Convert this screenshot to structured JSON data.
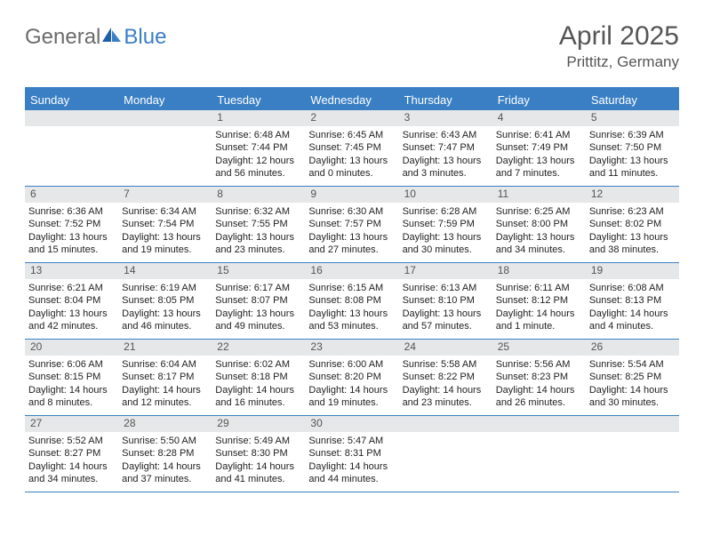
{
  "brand": {
    "part1": "General",
    "part2": "Blue"
  },
  "title": "April 2025",
  "location": "Prittitz, Germany",
  "colors": {
    "accent": "#3a7fc4",
    "daybar": "#e6e7e8",
    "text": "#222222",
    "muted": "#555555",
    "bg": "#ffffff"
  },
  "typography": {
    "title_fontsize": 30,
    "location_fontsize": 17,
    "dow_fontsize": 13,
    "cell_fontsize": 11
  },
  "dow": [
    "Sunday",
    "Monday",
    "Tuesday",
    "Wednesday",
    "Thursday",
    "Friday",
    "Saturday"
  ],
  "weeks": [
    [
      {
        "n": "",
        "sunrise": "",
        "sunset": "",
        "daylight1": "",
        "daylight2": ""
      },
      {
        "n": "",
        "sunrise": "",
        "sunset": "",
        "daylight1": "",
        "daylight2": ""
      },
      {
        "n": "1",
        "sunrise": "Sunrise: 6:48 AM",
        "sunset": "Sunset: 7:44 PM",
        "daylight1": "Daylight: 12 hours",
        "daylight2": "and 56 minutes."
      },
      {
        "n": "2",
        "sunrise": "Sunrise: 6:45 AM",
        "sunset": "Sunset: 7:45 PM",
        "daylight1": "Daylight: 13 hours",
        "daylight2": "and 0 minutes."
      },
      {
        "n": "3",
        "sunrise": "Sunrise: 6:43 AM",
        "sunset": "Sunset: 7:47 PM",
        "daylight1": "Daylight: 13 hours",
        "daylight2": "and 3 minutes."
      },
      {
        "n": "4",
        "sunrise": "Sunrise: 6:41 AM",
        "sunset": "Sunset: 7:49 PM",
        "daylight1": "Daylight: 13 hours",
        "daylight2": "and 7 minutes."
      },
      {
        "n": "5",
        "sunrise": "Sunrise: 6:39 AM",
        "sunset": "Sunset: 7:50 PM",
        "daylight1": "Daylight: 13 hours",
        "daylight2": "and 11 minutes."
      }
    ],
    [
      {
        "n": "6",
        "sunrise": "Sunrise: 6:36 AM",
        "sunset": "Sunset: 7:52 PM",
        "daylight1": "Daylight: 13 hours",
        "daylight2": "and 15 minutes."
      },
      {
        "n": "7",
        "sunrise": "Sunrise: 6:34 AM",
        "sunset": "Sunset: 7:54 PM",
        "daylight1": "Daylight: 13 hours",
        "daylight2": "and 19 minutes."
      },
      {
        "n": "8",
        "sunrise": "Sunrise: 6:32 AM",
        "sunset": "Sunset: 7:55 PM",
        "daylight1": "Daylight: 13 hours",
        "daylight2": "and 23 minutes."
      },
      {
        "n": "9",
        "sunrise": "Sunrise: 6:30 AM",
        "sunset": "Sunset: 7:57 PM",
        "daylight1": "Daylight: 13 hours",
        "daylight2": "and 27 minutes."
      },
      {
        "n": "10",
        "sunrise": "Sunrise: 6:28 AM",
        "sunset": "Sunset: 7:59 PM",
        "daylight1": "Daylight: 13 hours",
        "daylight2": "and 30 minutes."
      },
      {
        "n": "11",
        "sunrise": "Sunrise: 6:25 AM",
        "sunset": "Sunset: 8:00 PM",
        "daylight1": "Daylight: 13 hours",
        "daylight2": "and 34 minutes."
      },
      {
        "n": "12",
        "sunrise": "Sunrise: 6:23 AM",
        "sunset": "Sunset: 8:02 PM",
        "daylight1": "Daylight: 13 hours",
        "daylight2": "and 38 minutes."
      }
    ],
    [
      {
        "n": "13",
        "sunrise": "Sunrise: 6:21 AM",
        "sunset": "Sunset: 8:04 PM",
        "daylight1": "Daylight: 13 hours",
        "daylight2": "and 42 minutes."
      },
      {
        "n": "14",
        "sunrise": "Sunrise: 6:19 AM",
        "sunset": "Sunset: 8:05 PM",
        "daylight1": "Daylight: 13 hours",
        "daylight2": "and 46 minutes."
      },
      {
        "n": "15",
        "sunrise": "Sunrise: 6:17 AM",
        "sunset": "Sunset: 8:07 PM",
        "daylight1": "Daylight: 13 hours",
        "daylight2": "and 49 minutes."
      },
      {
        "n": "16",
        "sunrise": "Sunrise: 6:15 AM",
        "sunset": "Sunset: 8:08 PM",
        "daylight1": "Daylight: 13 hours",
        "daylight2": "and 53 minutes."
      },
      {
        "n": "17",
        "sunrise": "Sunrise: 6:13 AM",
        "sunset": "Sunset: 8:10 PM",
        "daylight1": "Daylight: 13 hours",
        "daylight2": "and 57 minutes."
      },
      {
        "n": "18",
        "sunrise": "Sunrise: 6:11 AM",
        "sunset": "Sunset: 8:12 PM",
        "daylight1": "Daylight: 14 hours",
        "daylight2": "and 1 minute."
      },
      {
        "n": "19",
        "sunrise": "Sunrise: 6:08 AM",
        "sunset": "Sunset: 8:13 PM",
        "daylight1": "Daylight: 14 hours",
        "daylight2": "and 4 minutes."
      }
    ],
    [
      {
        "n": "20",
        "sunrise": "Sunrise: 6:06 AM",
        "sunset": "Sunset: 8:15 PM",
        "daylight1": "Daylight: 14 hours",
        "daylight2": "and 8 minutes."
      },
      {
        "n": "21",
        "sunrise": "Sunrise: 6:04 AM",
        "sunset": "Sunset: 8:17 PM",
        "daylight1": "Daylight: 14 hours",
        "daylight2": "and 12 minutes."
      },
      {
        "n": "22",
        "sunrise": "Sunrise: 6:02 AM",
        "sunset": "Sunset: 8:18 PM",
        "daylight1": "Daylight: 14 hours",
        "daylight2": "and 16 minutes."
      },
      {
        "n": "23",
        "sunrise": "Sunrise: 6:00 AM",
        "sunset": "Sunset: 8:20 PM",
        "daylight1": "Daylight: 14 hours",
        "daylight2": "and 19 minutes."
      },
      {
        "n": "24",
        "sunrise": "Sunrise: 5:58 AM",
        "sunset": "Sunset: 8:22 PM",
        "daylight1": "Daylight: 14 hours",
        "daylight2": "and 23 minutes."
      },
      {
        "n": "25",
        "sunrise": "Sunrise: 5:56 AM",
        "sunset": "Sunset: 8:23 PM",
        "daylight1": "Daylight: 14 hours",
        "daylight2": "and 26 minutes."
      },
      {
        "n": "26",
        "sunrise": "Sunrise: 5:54 AM",
        "sunset": "Sunset: 8:25 PM",
        "daylight1": "Daylight: 14 hours",
        "daylight2": "and 30 minutes."
      }
    ],
    [
      {
        "n": "27",
        "sunrise": "Sunrise: 5:52 AM",
        "sunset": "Sunset: 8:27 PM",
        "daylight1": "Daylight: 14 hours",
        "daylight2": "and 34 minutes."
      },
      {
        "n": "28",
        "sunrise": "Sunrise: 5:50 AM",
        "sunset": "Sunset: 8:28 PM",
        "daylight1": "Daylight: 14 hours",
        "daylight2": "and 37 minutes."
      },
      {
        "n": "29",
        "sunrise": "Sunrise: 5:49 AM",
        "sunset": "Sunset: 8:30 PM",
        "daylight1": "Daylight: 14 hours",
        "daylight2": "and 41 minutes."
      },
      {
        "n": "30",
        "sunrise": "Sunrise: 5:47 AM",
        "sunset": "Sunset: 8:31 PM",
        "daylight1": "Daylight: 14 hours",
        "daylight2": "and 44 minutes."
      },
      {
        "n": "",
        "sunrise": "",
        "sunset": "",
        "daylight1": "",
        "daylight2": ""
      },
      {
        "n": "",
        "sunrise": "",
        "sunset": "",
        "daylight1": "",
        "daylight2": ""
      },
      {
        "n": "",
        "sunrise": "",
        "sunset": "",
        "daylight1": "",
        "daylight2": ""
      }
    ]
  ]
}
